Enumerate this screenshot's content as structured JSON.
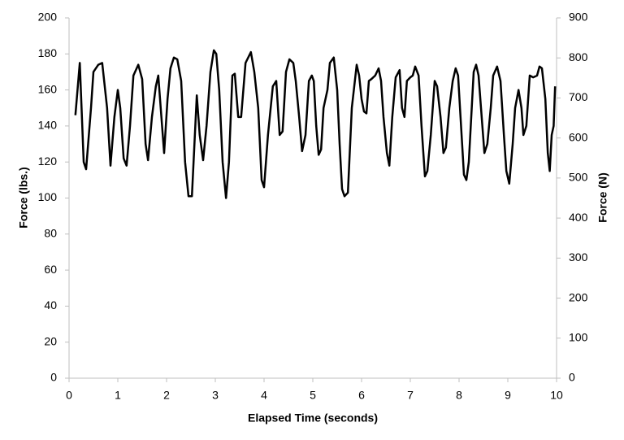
{
  "chart_data": {
    "type": "line",
    "xlabel": "Elapsed Time (seconds)",
    "ylabel": "Force (lbs.)",
    "y2label": "Force (N)",
    "color": "#000000",
    "x": [
      0.13,
      0.22,
      0.3,
      0.35,
      0.45,
      0.5,
      0.6,
      0.68,
      0.78,
      0.85,
      0.93,
      1.0,
      1.05,
      1.12,
      1.18,
      1.25,
      1.32,
      1.42,
      1.5,
      1.57,
      1.62,
      1.7,
      1.78,
      1.83,
      1.88,
      1.95,
      2.02,
      2.08,
      2.15,
      2.22,
      2.3,
      2.38,
      2.45,
      2.52,
      2.62,
      2.68,
      2.75,
      2.82,
      2.9,
      2.97,
      3.02,
      3.08,
      3.15,
      3.22,
      3.28,
      3.35,
      3.4,
      3.47,
      3.53,
      3.62,
      3.73,
      3.8,
      3.88,
      3.95,
      4.0,
      4.08,
      4.18,
      4.25,
      4.32,
      4.38,
      4.45,
      4.52,
      4.6,
      4.65,
      4.72,
      4.78,
      4.85,
      4.92,
      4.98,
      5.02,
      5.07,
      5.12,
      5.17,
      5.22,
      5.3,
      5.35,
      5.43,
      5.5,
      5.55,
      5.6,
      5.65,
      5.72,
      5.8,
      5.9,
      5.95,
      6.0,
      6.05,
      6.1,
      6.15,
      6.2,
      6.28,
      6.35,
      6.4,
      6.45,
      6.52,
      6.57,
      6.63,
      6.7,
      6.78,
      6.83,
      6.88,
      6.93,
      7.0,
      7.05,
      7.1,
      7.17,
      7.23,
      7.3,
      7.35,
      7.42,
      7.5,
      7.55,
      7.62,
      7.68,
      7.73,
      7.8,
      7.87,
      7.93,
      7.98,
      8.03,
      8.1,
      8.15,
      8.2,
      8.3,
      8.35,
      8.4,
      8.45,
      8.52,
      8.58,
      8.65,
      8.7,
      8.78,
      8.85,
      8.92,
      8.97,
      9.03,
      9.1,
      9.15,
      9.22,
      9.28,
      9.32,
      9.38,
      9.45,
      9.52,
      9.6,
      9.65,
      9.7,
      9.77,
      9.82,
      9.86,
      9.9,
      9.94,
      9.97
    ],
    "values": [
      146,
      175,
      120,
      116,
      150,
      170,
      174,
      175,
      150,
      118,
      145,
      160,
      150,
      122,
      118,
      140,
      168,
      174,
      166,
      130,
      121,
      145,
      162,
      168,
      150,
      125,
      155,
      172,
      178,
      177,
      165,
      120,
      101,
      101,
      157,
      135,
      121,
      140,
      170,
      182,
      180,
      160,
      120,
      100,
      120,
      168,
      169,
      145,
      145,
      175,
      181,
      170,
      150,
      110,
      106,
      135,
      162,
      165,
      135,
      137,
      170,
      177,
      175,
      165,
      145,
      126,
      135,
      165,
      168,
      165,
      140,
      124,
      127,
      150,
      160,
      175,
      178,
      160,
      130,
      105,
      101,
      103,
      150,
      174,
      168,
      155,
      148,
      147,
      165,
      166,
      168,
      172,
      165,
      145,
      125,
      118,
      145,
      167,
      171,
      150,
      145,
      165,
      167,
      168,
      173,
      168,
      140,
      112,
      115,
      135,
      165,
      162,
      145,
      125,
      128,
      150,
      165,
      172,
      168,
      145,
      113,
      110,
      120,
      170,
      174,
      168,
      150,
      125,
      130,
      150,
      168,
      173,
      165,
      135,
      115,
      108,
      130,
      150,
      160,
      150,
      135,
      140,
      168,
      167,
      168,
      173,
      172,
      155,
      125,
      115,
      135,
      140,
      162
    ],
    "xlim": [
      0,
      10
    ],
    "xticks": [
      0,
      1,
      2,
      3,
      4,
      5,
      6,
      7,
      8,
      9,
      10
    ],
    "ylim": [
      0,
      200
    ],
    "yticks": [
      0,
      20,
      40,
      60,
      80,
      100,
      120,
      140,
      160,
      180,
      200
    ],
    "y2lim": [
      0,
      900
    ],
    "y2ticks": [
      0,
      100,
      200,
      300,
      400,
      500,
      600,
      700,
      800,
      900
    ]
  }
}
